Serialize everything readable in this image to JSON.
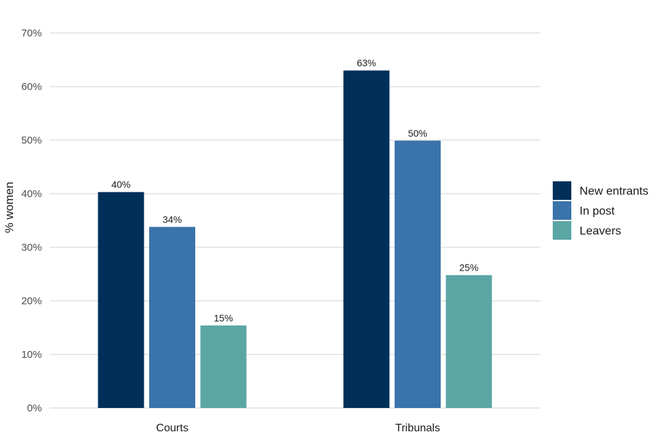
{
  "chart_data": {
    "type": "bar",
    "title": "",
    "xlabel": "",
    "ylabel": "% women",
    "categories": [
      "Courts",
      "Tribunals"
    ],
    "series": [
      {
        "name": "New entrants",
        "color": "#00305a",
        "values": [
          40.3,
          63.0
        ],
        "labels": [
          "40%",
          "63%"
        ]
      },
      {
        "name": "In post",
        "color": "#3a74ab",
        "values": [
          33.8,
          49.9
        ],
        "labels": [
          "34%",
          "50%"
        ]
      },
      {
        "name": "Leavers",
        "color": "#5aa6a4",
        "values": [
          15.4,
          24.8
        ],
        "labels": [
          "15%",
          "25%"
        ]
      }
    ],
    "ylim": [
      0,
      70
    ],
    "yticks": [
      0,
      10,
      20,
      30,
      40,
      50,
      60,
      70
    ],
    "ytick_labels": [
      "0%",
      "10%",
      "20%",
      "30%",
      "40%",
      "50%",
      "60%",
      "70%"
    ],
    "grid": true,
    "legend_position": "right"
  }
}
